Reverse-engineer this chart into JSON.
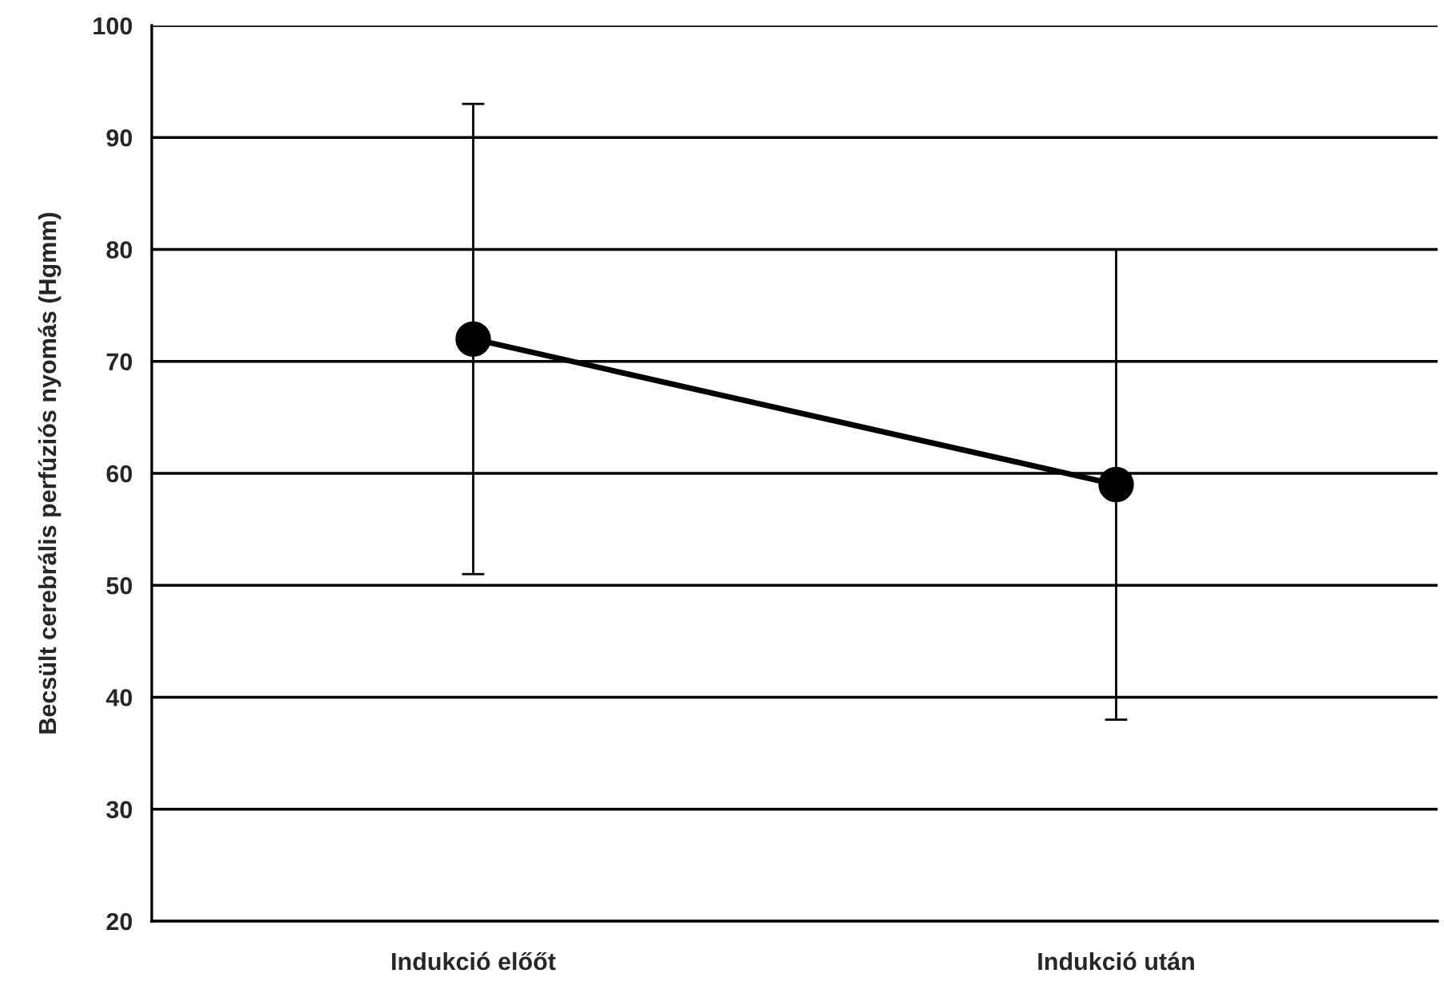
{
  "chart_data": {
    "type": "line",
    "ylabel": "Becsült cerebrális perfúziós nyomás (Hgmm)",
    "categories": [
      "Indukció előőt",
      "Indukció után"
    ],
    "series": [
      {
        "color": "#000000",
        "values": [
          72,
          59
        ],
        "errors": [
          21,
          21
        ]
      }
    ],
    "ylim": [
      20,
      100
    ],
    "yticks": [
      20,
      30,
      40,
      50,
      60,
      70,
      80,
      90,
      100
    ],
    "grid": "y",
    "legend": false,
    "marker": "circle",
    "line_style": "solid"
  }
}
